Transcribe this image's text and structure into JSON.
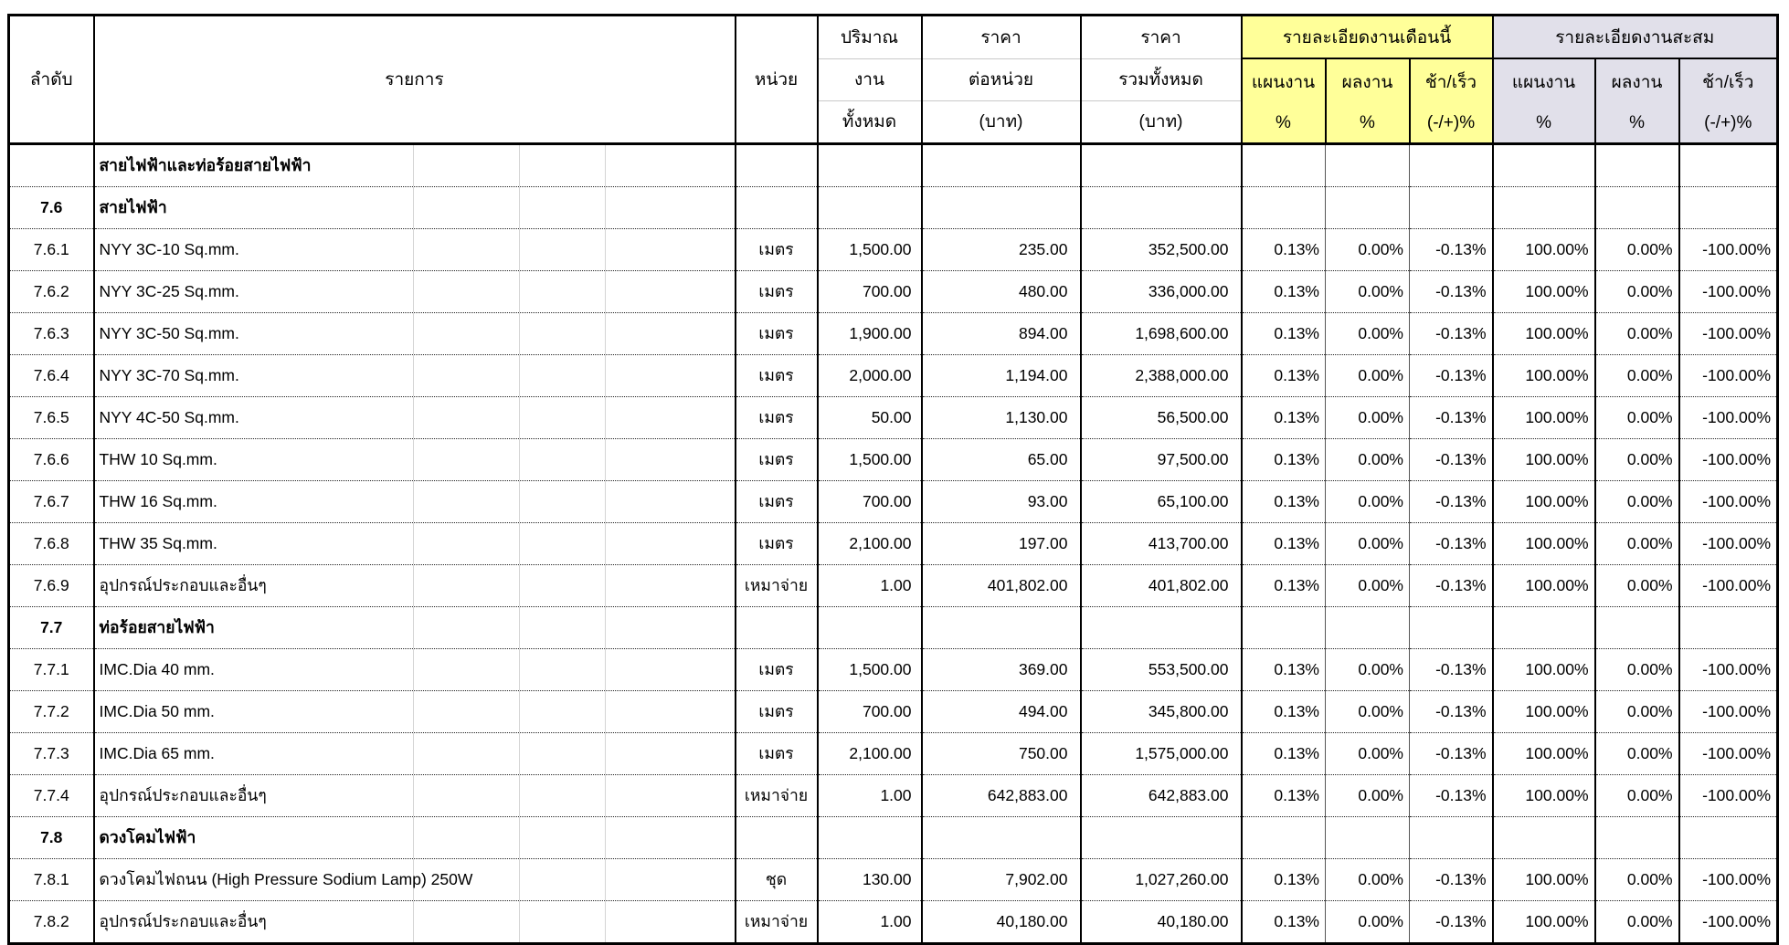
{
  "colors": {
    "month_header_bg": "#ffff99",
    "cumulative_header_bg": "#e1e0ea"
  },
  "header": {
    "col_no": "ลำดับ",
    "col_item": "รายการ",
    "col_unit": "หน่วย",
    "col_qty": [
      "ปริมาณ",
      "งาน",
      "ทั้งหมด"
    ],
    "col_unit_price": [
      "ราคา",
      "ต่อหน่วย",
      "(บาท)"
    ],
    "col_total_price": [
      "ราคา",
      "รวมทั้งหมด",
      "(บาท)"
    ],
    "group_month": {
      "title": "รายละเอียดงานเดือนนี้",
      "plan": [
        "แผนงาน",
        "%"
      ],
      "actual": [
        "ผลงาน",
        "%"
      ],
      "diff": [
        "ช้า/เร็ว",
        "(-/+)%"
      ]
    },
    "group_cumulative": {
      "title": "รายละเอียดงานสะสม",
      "plan": [
        "แผนงาน",
        "%"
      ],
      "actual": [
        "ผลงาน",
        "%"
      ],
      "diff": [
        "ช้า/เร็ว",
        "(-/+)%"
      ]
    }
  },
  "rows": [
    {
      "no": "",
      "item": "สายไฟฟ้าและท่อร้อยสายไฟฟ้า",
      "unit": "",
      "qty": "",
      "unit_price": "",
      "total_price": "",
      "month": [
        "",
        "",
        ""
      ],
      "cum": [
        "",
        "",
        ""
      ],
      "section": true
    },
    {
      "no": "7.6",
      "item": "สายไฟฟ้า",
      "unit": "",
      "qty": "",
      "unit_price": "",
      "total_price": "",
      "month": [
        "",
        "",
        ""
      ],
      "cum": [
        "",
        "",
        ""
      ],
      "section": true
    },
    {
      "no": "7.6.1",
      "item": "NYY 3C-10 Sq.mm.",
      "unit": "เมตร",
      "qty": "1,500.00",
      "unit_price": "235.00",
      "total_price": "352,500.00",
      "month": [
        "0.13%",
        "0.00%",
        "-0.13%"
      ],
      "cum": [
        "100.00%",
        "0.00%",
        "-100.00%"
      ],
      "section": false
    },
    {
      "no": "7.6.2",
      "item": "NYY 3C-25 Sq.mm.",
      "unit": "เมตร",
      "qty": "700.00",
      "unit_price": "480.00",
      "total_price": "336,000.00",
      "month": [
        "0.13%",
        "0.00%",
        "-0.13%"
      ],
      "cum": [
        "100.00%",
        "0.00%",
        "-100.00%"
      ],
      "section": false
    },
    {
      "no": "7.6.3",
      "item": "NYY 3C-50 Sq.mm.",
      "unit": "เมตร",
      "qty": "1,900.00",
      "unit_price": "894.00",
      "total_price": "1,698,600.00",
      "month": [
        "0.13%",
        "0.00%",
        "-0.13%"
      ],
      "cum": [
        "100.00%",
        "0.00%",
        "-100.00%"
      ],
      "section": false
    },
    {
      "no": "7.6.4",
      "item": "NYY 3C-70 Sq.mm.",
      "unit": "เมตร",
      "qty": "2,000.00",
      "unit_price": "1,194.00",
      "total_price": "2,388,000.00",
      "month": [
        "0.13%",
        "0.00%",
        "-0.13%"
      ],
      "cum": [
        "100.00%",
        "0.00%",
        "-100.00%"
      ],
      "section": false
    },
    {
      "no": "7.6.5",
      "item": "NYY 4C-50 Sq.mm.",
      "unit": "เมตร",
      "qty": "50.00",
      "unit_price": "1,130.00",
      "total_price": "56,500.00",
      "month": [
        "0.13%",
        "0.00%",
        "-0.13%"
      ],
      "cum": [
        "100.00%",
        "0.00%",
        "-100.00%"
      ],
      "section": false
    },
    {
      "no": "7.6.6",
      "item": "THW 10 Sq.mm.",
      "unit": "เมตร",
      "qty": "1,500.00",
      "unit_price": "65.00",
      "total_price": "97,500.00",
      "month": [
        "0.13%",
        "0.00%",
        "-0.13%"
      ],
      "cum": [
        "100.00%",
        "0.00%",
        "-100.00%"
      ],
      "section": false
    },
    {
      "no": "7.6.7",
      "item": "THW 16 Sq.mm.",
      "unit": "เมตร",
      "qty": "700.00",
      "unit_price": "93.00",
      "total_price": "65,100.00",
      "month": [
        "0.13%",
        "0.00%",
        "-0.13%"
      ],
      "cum": [
        "100.00%",
        "0.00%",
        "-100.00%"
      ],
      "section": false
    },
    {
      "no": "7.6.8",
      "item": "THW 35 Sq.mm.",
      "unit": "เมตร",
      "qty": "2,100.00",
      "unit_price": "197.00",
      "total_price": "413,700.00",
      "month": [
        "0.13%",
        "0.00%",
        "-0.13%"
      ],
      "cum": [
        "100.00%",
        "0.00%",
        "-100.00%"
      ],
      "section": false
    },
    {
      "no": "7.6.9",
      "item": "อุปกรณ์ประกอบและอื่นๆ",
      "unit": "เหมาจ่าย",
      "qty": "1.00",
      "unit_price": "401,802.00",
      "total_price": "401,802.00",
      "month": [
        "0.13%",
        "0.00%",
        "-0.13%"
      ],
      "cum": [
        "100.00%",
        "0.00%",
        "-100.00%"
      ],
      "section": false
    },
    {
      "no": "7.7",
      "item": "ท่อร้อยสายไฟฟ้า",
      "unit": "",
      "qty": "",
      "unit_price": "",
      "total_price": "",
      "month": [
        "",
        "",
        ""
      ],
      "cum": [
        "",
        "",
        ""
      ],
      "section": true
    },
    {
      "no": "7.7.1",
      "item": "IMC.Dia 40 mm.",
      "unit": "เมตร",
      "qty": "1,500.00",
      "unit_price": "369.00",
      "total_price": "553,500.00",
      "month": [
        "0.13%",
        "0.00%",
        "-0.13%"
      ],
      "cum": [
        "100.00%",
        "0.00%",
        "-100.00%"
      ],
      "section": false
    },
    {
      "no": "7.7.2",
      "item": "IMC.Dia 50 mm.",
      "unit": "เมตร",
      "qty": "700.00",
      "unit_price": "494.00",
      "total_price": "345,800.00",
      "month": [
        "0.13%",
        "0.00%",
        "-0.13%"
      ],
      "cum": [
        "100.00%",
        "0.00%",
        "-100.00%"
      ],
      "section": false
    },
    {
      "no": "7.7.3",
      "item": "IMC.Dia 65 mm.",
      "unit": "เมตร",
      "qty": "2,100.00",
      "unit_price": "750.00",
      "total_price": "1,575,000.00",
      "month": [
        "0.13%",
        "0.00%",
        "-0.13%"
      ],
      "cum": [
        "100.00%",
        "0.00%",
        "-100.00%"
      ],
      "section": false
    },
    {
      "no": "7.7.4",
      "item": "อุปกรณ์ประกอบและอื่นๆ",
      "unit": "เหมาจ่าย",
      "qty": "1.00",
      "unit_price": "642,883.00",
      "total_price": "642,883.00",
      "month": [
        "0.13%",
        "0.00%",
        "-0.13%"
      ],
      "cum": [
        "100.00%",
        "0.00%",
        "-100.00%"
      ],
      "section": false
    },
    {
      "no": "7.8",
      "item": "ดวงโคมไฟฟ้า",
      "unit": "",
      "qty": "",
      "unit_price": "",
      "total_price": "",
      "month": [
        "",
        "",
        ""
      ],
      "cum": [
        "",
        "",
        ""
      ],
      "section": true
    },
    {
      "no": "7.8.1",
      "item": "ดวงโคมไฟถนน (High Pressure Sodium Lamp) 250W",
      "unit": "ชุด",
      "qty": "130.00",
      "unit_price": "7,902.00",
      "total_price": "1,027,260.00",
      "month": [
        "0.13%",
        "0.00%",
        "-0.13%"
      ],
      "cum": [
        "100.00%",
        "0.00%",
        "-100.00%"
      ],
      "section": false
    },
    {
      "no": "7.8.2",
      "item": "อุปกรณ์ประกอบและอื่นๆ",
      "unit": "เหมาจ่าย",
      "qty": "1.00",
      "unit_price": "40,180.00",
      "total_price": "40,180.00",
      "month": [
        "0.13%",
        "0.00%",
        "-0.13%"
      ],
      "cum": [
        "100.00%",
        "0.00%",
        "-100.00%"
      ],
      "section": false
    }
  ]
}
